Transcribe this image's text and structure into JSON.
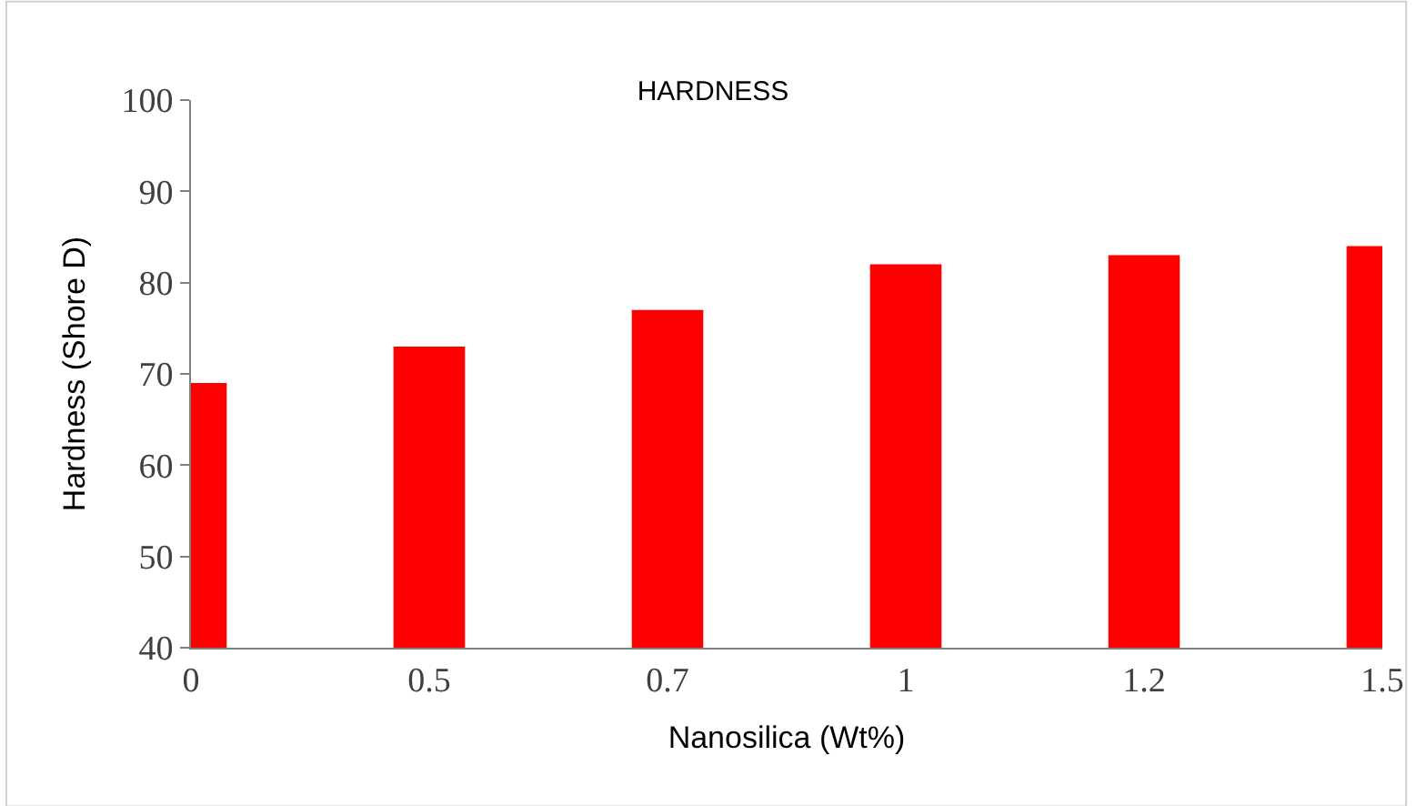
{
  "chart_data": {
    "type": "bar",
    "title": "HARDNESS",
    "xlabel": "Nanosilica (Wt%)",
    "ylabel": "Hardness (Shore D)",
    "categories": [
      "0",
      "0.5",
      "0.7",
      "1",
      "1.2",
      "1.5"
    ],
    "values": [
      69,
      73,
      77,
      82,
      83,
      84
    ],
    "color": "#ff0000",
    "ylim": [
      40,
      100
    ],
    "yticks": [
      40,
      50,
      60,
      70,
      80,
      90,
      100
    ]
  }
}
